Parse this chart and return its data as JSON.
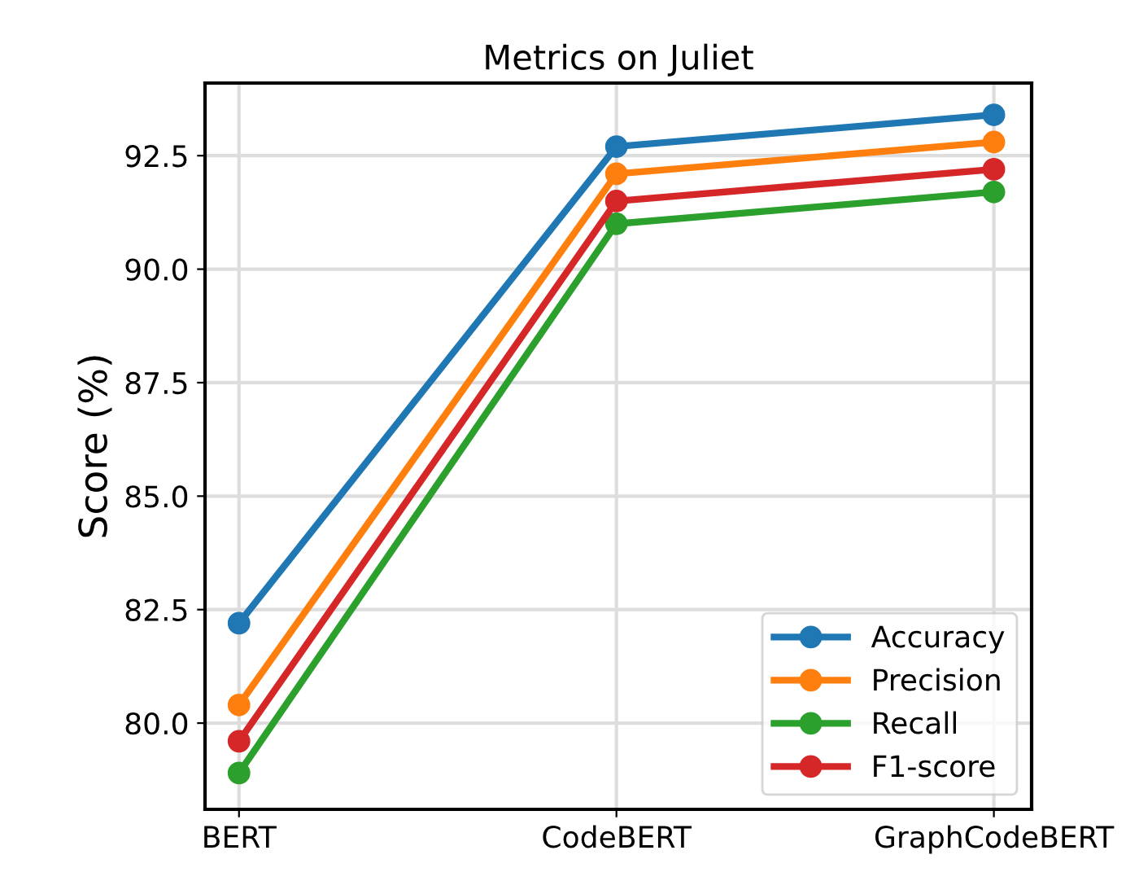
{
  "chart_data": {
    "type": "line",
    "title": "Metrics on Juliet",
    "ylabel": "Score (%)",
    "categories": [
      "BERT",
      "CodeBERT",
      "GraphCodeBERT"
    ],
    "series": [
      {
        "name": "Accuracy",
        "color": "#1f77b4",
        "values": [
          82.2,
          92.7,
          93.4
        ]
      },
      {
        "name": "Precision",
        "color": "#ff7f0e",
        "values": [
          80.4,
          92.1,
          92.8
        ]
      },
      {
        "name": "Recall",
        "color": "#2ca02c",
        "values": [
          78.9,
          91.0,
          91.7
        ]
      },
      {
        "name": "F1-score",
        "color": "#d62728",
        "values": [
          79.6,
          91.5,
          92.2
        ]
      }
    ],
    "ylim": [
      78.1,
      94.1
    ],
    "yticks": [
      {
        "value": 80,
        "label": "80.0"
      },
      82.5,
      {
        "value": 85,
        "label": "85.0"
      },
      87.5,
      {
        "value": 90,
        "label": "90.0"
      },
      92.5
    ],
    "grid": true,
    "legend": "lower right",
    "marker": "circle",
    "line_style": "solid"
  }
}
